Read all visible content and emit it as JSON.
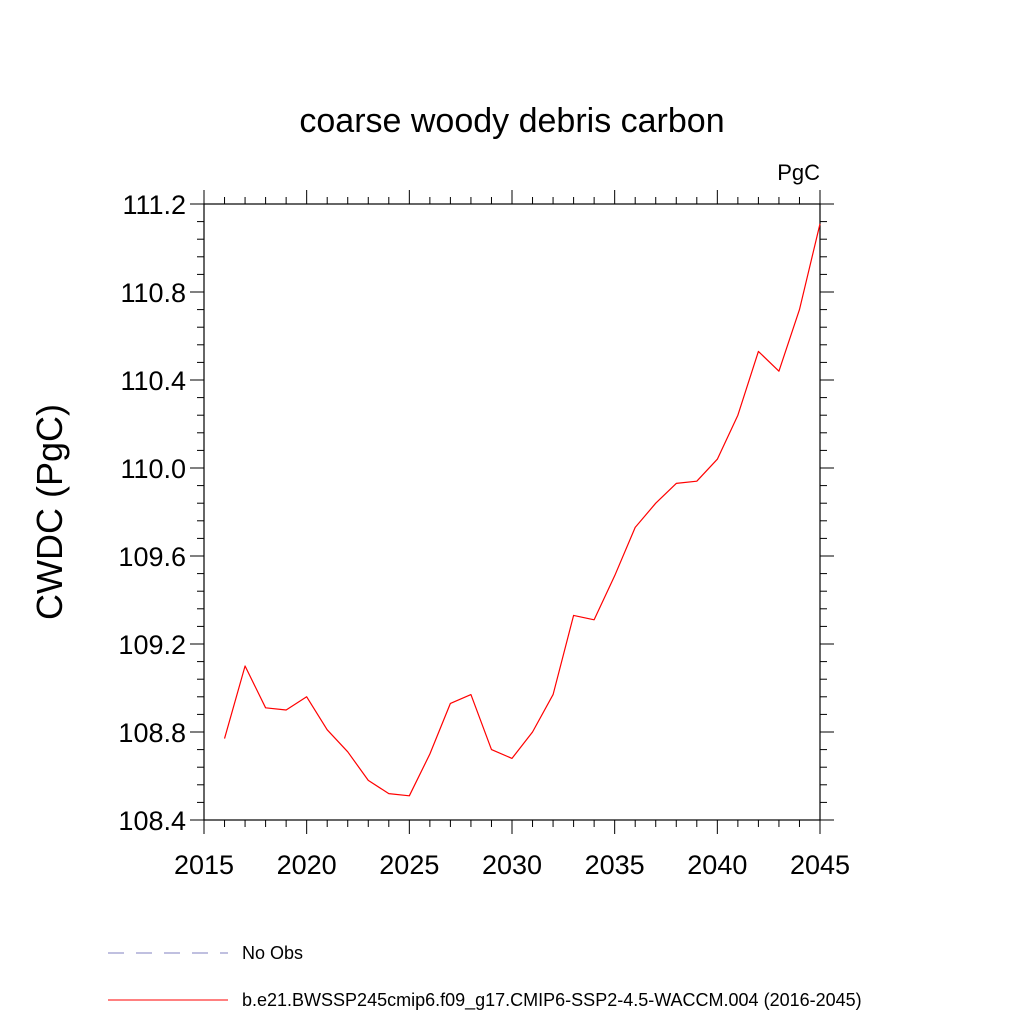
{
  "chart_data": {
    "type": "line",
    "title": "coarse woody debris carbon",
    "units": "PgC",
    "ylabel": "CWDC  (PgC)",
    "xlabel": "",
    "xlim": [
      2015,
      2045
    ],
    "ylim": [
      108.4,
      111.2
    ],
    "xticks": [
      2015,
      2020,
      2025,
      2030,
      2035,
      2040,
      2045
    ],
    "yticks": [
      108.4,
      108.8,
      109.2,
      109.6,
      110.0,
      110.4,
      110.8,
      111.2
    ],
    "ytick_labels": [
      "108.4",
      "108.8",
      "109.2",
      "109.6",
      "110.0",
      "110.4",
      "110.8",
      "111.2"
    ],
    "grid": false,
    "legend_position": "bottom",
    "series": [
      {
        "name": "b.e21.BWSSP245cmip6.f09_g17.CMIP6-SSP2-4.5-WACCM.004 (2016-2045)",
        "color": "#ff0000",
        "style": "solid",
        "x": [
          2016,
          2017,
          2018,
          2019,
          2020,
          2021,
          2022,
          2023,
          2024,
          2025,
          2026,
          2027,
          2028,
          2029,
          2030,
          2031,
          2032,
          2033,
          2034,
          2035,
          2036,
          2037,
          2038,
          2039,
          2040,
          2041,
          2042,
          2043,
          2044,
          2045
        ],
        "y": [
          108.77,
          109.1,
          108.91,
          108.9,
          108.96,
          108.81,
          108.71,
          108.58,
          108.52,
          108.51,
          108.7,
          108.93,
          108.97,
          108.72,
          108.68,
          108.8,
          108.97,
          109.33,
          109.31,
          109.51,
          109.73,
          109.84,
          109.93,
          109.94,
          110.04,
          110.24,
          110.53,
          110.44,
          110.72,
          111.11
        ]
      }
    ],
    "legend": [
      {
        "label": "No Obs",
        "color": "#8080c0",
        "style": "dashed"
      },
      {
        "label": "b.e21.BWSSP245cmip6.f09_g17.CMIP6-SSP2-4.5-WACCM.004 (2016-2045)",
        "color": "#ff0000",
        "style": "solid"
      }
    ]
  }
}
